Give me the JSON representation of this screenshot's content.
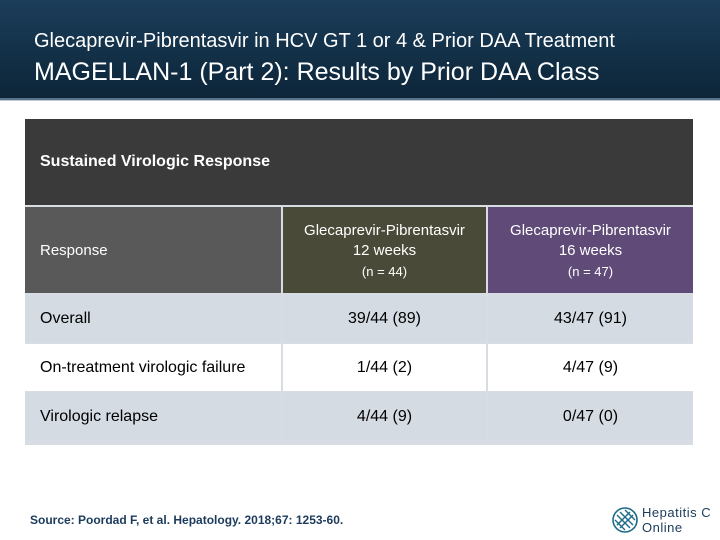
{
  "header": {
    "subtitle": "Glecaprevir-Pibrentasvir in HCV GT 1 or 4 & Prior DAA Treatment",
    "title": "MAGELLAN-1 (Part 2): Results by Prior DAA Class"
  },
  "table": {
    "banner": "Sustained Virologic Response",
    "row_header_label": "Response",
    "columns": [
      {
        "name_line1": "Glecaprevir-Pibrentasvir",
        "name_line2": "12 weeks",
        "n": "(n = 44)"
      },
      {
        "name_line1": "Glecaprevir-Pibrentasvir",
        "name_line2": "16 weeks",
        "n": "(n = 47)"
      }
    ],
    "rows": [
      {
        "label": "Overall",
        "values": [
          "39/44 (89)",
          "43/47 (91)"
        ]
      },
      {
        "label": "On-treatment virologic failure",
        "values": [
          "1/44 (2)",
          "4/47 (9)"
        ]
      },
      {
        "label": "Virologic relapse",
        "values": [
          "4/44 (9)",
          "0/47 (0)"
        ]
      }
    ]
  },
  "source": "Source: Poordad F, et al. Hepatology. 2018;67: 1253-60.",
  "logo": {
    "line1": "Hepatitis C",
    "line2": "Online"
  },
  "colors": {
    "header_bg": "#123047",
    "col1_bg": "#4a4a38",
    "col2_bg": "#5f4a78",
    "banner_bg": "#3a3a3a"
  }
}
